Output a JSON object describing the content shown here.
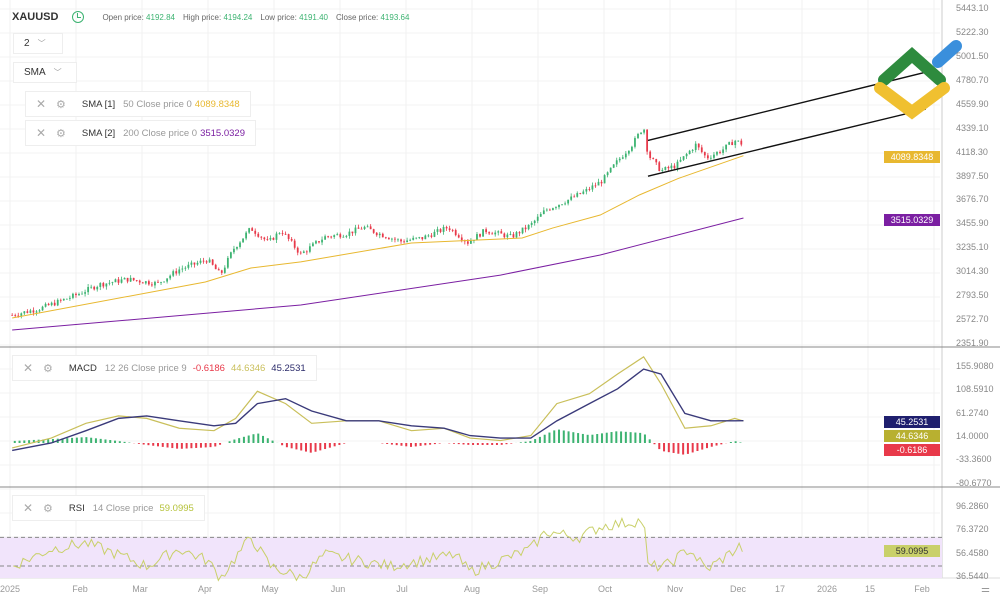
{
  "header": {
    "symbol": "XAUUSD",
    "open_label": "Open price:",
    "open": "4192.84",
    "high_label": "High price:",
    "high": "4194.24",
    "low_label": "Low price:",
    "low": "4191.40",
    "close_label": "Close price:",
    "close": "4193.64"
  },
  "controls": {
    "interval": "2",
    "indicator_select": "SMA"
  },
  "legends": {
    "sma1": {
      "name": "SMA [1]",
      "params": "50 Close price 0",
      "value": "4089.8348"
    },
    "sma2": {
      "name": "SMA [2]",
      "params": "200 Close price 0",
      "value": "3515.0329"
    },
    "macd": {
      "name": "MACD",
      "params": "12 26 Close price 9",
      "hist": "-0.6186",
      "macd": "44.6346",
      "signal": "45.2531"
    },
    "rsi": {
      "name": "RSI",
      "params": "14 Close price",
      "value": "59.0995"
    }
  },
  "price_axis": [
    "5443.10",
    "5222.30",
    "5001.50",
    "4780.70",
    "4559.90",
    "4339.10",
    "4118.30",
    "3897.50",
    "3676.70",
    "3455.90",
    "3235.10",
    "3014.30",
    "2793.50",
    "2572.70",
    "2351.90"
  ],
  "macd_axis": [
    "155.9080",
    "108.5910",
    "61.2740",
    "14.0000",
    "-33.3600",
    "-80.6770"
  ],
  "rsi_axis": [
    "96.2860",
    "76.3720",
    "56.4580",
    "36.5440"
  ],
  "tags": {
    "sma1": "4089.8348",
    "sma2": "3515.0329",
    "macd_signal": "45.2531",
    "macd_line": "44.6346",
    "macd_hist": "-0.6186",
    "rsi": "59.0995"
  },
  "time_axis": [
    "2025",
    "Feb",
    "Mar",
    "Apr",
    "May",
    "Jun",
    "Jul",
    "Aug",
    "Sep",
    "Oct",
    "Nov",
    "Dec",
    "17",
    "2026",
    "15",
    "Feb"
  ],
  "colors": {
    "up": "#3cb371",
    "down": "#e8394a",
    "sma1": "#e8b830",
    "sma2": "#7b1fa2",
    "macd": "#c9bf5a",
    "signal": "#3a3a7a",
    "rsi": "#c9d06a",
    "rsi_band": "#f1e4fb"
  },
  "chart_data": {
    "type": "candlestick",
    "close": [
      [
        "2025-01-02",
        2620
      ],
      [
        "2025-01-15",
        2680
      ],
      [
        "2025-01-31",
        2800
      ],
      [
        "2025-02-11",
        2900
      ],
      [
        "2025-02-24",
        2950
      ],
      [
        "2025-03-10",
        2910
      ],
      [
        "2025-03-20",
        3040
      ],
      [
        "2025-04-02",
        3130
      ],
      [
        "2025-04-08",
        2990
      ],
      [
        "2025-04-14",
        3230
      ],
      [
        "2025-04-22",
        3420
      ],
      [
        "2025-04-30",
        3290
      ],
      [
        "2025-05-06",
        3400
      ],
      [
        "2025-05-15",
        3180
      ],
      [
        "2025-05-26",
        3340
      ],
      [
        "2025-06-05",
        3370
      ],
      [
        "2025-06-13",
        3430
      ],
      [
        "2025-06-20",
        3370
      ],
      [
        "2025-06-30",
        3300
      ],
      [
        "2025-07-10",
        3330
      ],
      [
        "2025-07-22",
        3430
      ],
      [
        "2025-07-31",
        3290
      ],
      [
        "2025-08-08",
        3400
      ],
      [
        "2025-08-20",
        3340
      ],
      [
        "2025-08-29",
        3450
      ],
      [
        "2025-09-05",
        3590
      ],
      [
        "2025-09-15",
        3680
      ],
      [
        "2025-09-23",
        3760
      ],
      [
        "2025-10-01",
        3860
      ],
      [
        "2025-10-08",
        4040
      ],
      [
        "2025-10-15",
        4200
      ],
      [
        "2025-10-20",
        4360
      ],
      [
        "2025-10-22",
        4100
      ],
      [
        "2025-10-28",
        3950
      ],
      [
        "2025-11-04",
        4000
      ],
      [
        "2025-11-13",
        4190
      ],
      [
        "2025-11-18",
        4070
      ],
      [
        "2025-11-25",
        4140
      ],
      [
        "2025-12-01",
        4230
      ],
      [
        "2025-12-05",
        4193.64
      ]
    ],
    "sma50": [
      [
        "2025-01-02",
        2592
      ],
      [
        "2025-04-01",
        2924
      ],
      [
        "2025-04-22",
        3053
      ],
      [
        "2025-05-15",
        3110
      ],
      [
        "2025-07-05",
        3284
      ],
      [
        "2025-08-25",
        3330
      ],
      [
        "2025-09-08",
        3422
      ],
      [
        "2025-09-30",
        3542
      ],
      [
        "2025-10-18",
        3727
      ],
      [
        "2025-11-05",
        3880
      ],
      [
        "2025-12-05",
        4089.83
      ]
    ],
    "sma200": [
      [
        "2025-01-02",
        2481
      ],
      [
        "2025-05-15",
        2712
      ],
      [
        "2025-08-15",
        2988
      ],
      [
        "2025-09-30",
        3173
      ],
      [
        "2025-12-05",
        3515.03
      ]
    ],
    "channel": [
      [
        [
          "2025-10-22",
          4230
        ],
        [
          "2026-02-27",
          4860
        ]
      ],
      [
        [
          "2025-10-22",
          3900
        ],
        [
          "2026-02-27",
          4520
        ]
      ]
    ],
    "macd": [
      [
        "2025-01-02",
        -10
      ],
      [
        "2025-01-20",
        10
      ],
      [
        "2025-02-05",
        40
      ],
      [
        "2025-02-20",
        55
      ],
      [
        "2025-03-05",
        50
      ],
      [
        "2025-03-20",
        30
      ],
      [
        "2025-04-05",
        25
      ],
      [
        "2025-04-15",
        50
      ],
      [
        "2025-04-25",
        105
      ],
      [
        "2025-05-08",
        80
      ],
      [
        "2025-05-20",
        40
      ],
      [
        "2025-06-05",
        45
      ],
      [
        "2025-06-20",
        45
      ],
      [
        "2025-07-05",
        25
      ],
      [
        "2025-07-20",
        30
      ],
      [
        "2025-08-01",
        10
      ],
      [
        "2025-08-15",
        5
      ],
      [
        "2025-08-29",
        15
      ],
      [
        "2025-09-10",
        80
      ],
      [
        "2025-09-25",
        100
      ],
      [
        "2025-10-08",
        140
      ],
      [
        "2025-10-20",
        175
      ],
      [
        "2025-10-28",
        120
      ],
      [
        "2025-11-08",
        30
      ],
      [
        "2025-11-20",
        35
      ],
      [
        "2025-12-01",
        50
      ],
      [
        "2025-12-05",
        44.63
      ]
    ],
    "signal": [
      [
        "2025-01-02",
        -15
      ],
      [
        "2025-01-20",
        0
      ],
      [
        "2025-02-05",
        25
      ],
      [
        "2025-02-20",
        50
      ],
      [
        "2025-03-05",
        55
      ],
      [
        "2025-03-20",
        45
      ],
      [
        "2025-04-05",
        35
      ],
      [
        "2025-04-15",
        40
      ],
      [
        "2025-04-25",
        80
      ],
      [
        "2025-05-08",
        90
      ],
      [
        "2025-05-20",
        65
      ],
      [
        "2025-06-05",
        45
      ],
      [
        "2025-06-20",
        45
      ],
      [
        "2025-07-05",
        35
      ],
      [
        "2025-07-20",
        30
      ],
      [
        "2025-08-01",
        15
      ],
      [
        "2025-08-15",
        10
      ],
      [
        "2025-08-29",
        10
      ],
      [
        "2025-09-10",
        45
      ],
      [
        "2025-09-25",
        80
      ],
      [
        "2025-10-08",
        110
      ],
      [
        "2025-10-20",
        150
      ],
      [
        "2025-10-28",
        140
      ],
      [
        "2025-11-08",
        60
      ],
      [
        "2025-11-20",
        45
      ],
      [
        "2025-12-01",
        45
      ],
      [
        "2025-12-05",
        45.25
      ]
    ],
    "rsi": [
      [
        "2025-01-02",
        45
      ],
      [
        "2025-01-20",
        60
      ],
      [
        "2025-02-05",
        65
      ],
      [
        "2025-02-20",
        55
      ],
      [
        "2025-03-05",
        45
      ],
      [
        "2025-03-20",
        60
      ],
      [
        "2025-04-02",
        50
      ],
      [
        "2025-04-08",
        35
      ],
      [
        "2025-04-22",
        70
      ],
      [
        "2025-05-01",
        45
      ],
      [
        "2025-05-15",
        35
      ],
      [
        "2025-05-26",
        55
      ],
      [
        "2025-06-10",
        50
      ],
      [
        "2025-06-25",
        45
      ],
      [
        "2025-07-10",
        50
      ],
      [
        "2025-07-25",
        55
      ],
      [
        "2025-08-01",
        40
      ],
      [
        "2025-08-15",
        50
      ],
      [
        "2025-08-29",
        60
      ],
      [
        "2025-09-05",
        75
      ],
      [
        "2025-09-20",
        70
      ],
      [
        "2025-10-01",
        80
      ],
      [
        "2025-10-10",
        82
      ],
      [
        "2025-10-20",
        85
      ],
      [
        "2025-10-22",
        45
      ],
      [
        "2025-10-30",
        45
      ],
      [
        "2025-11-10",
        60
      ],
      [
        "2025-11-18",
        42
      ],
      [
        "2025-11-28",
        55
      ],
      [
        "2025-12-03",
        62
      ],
      [
        "2025-12-05",
        59.1
      ]
    ],
    "rsi_band": [
      30,
      70
    ]
  }
}
